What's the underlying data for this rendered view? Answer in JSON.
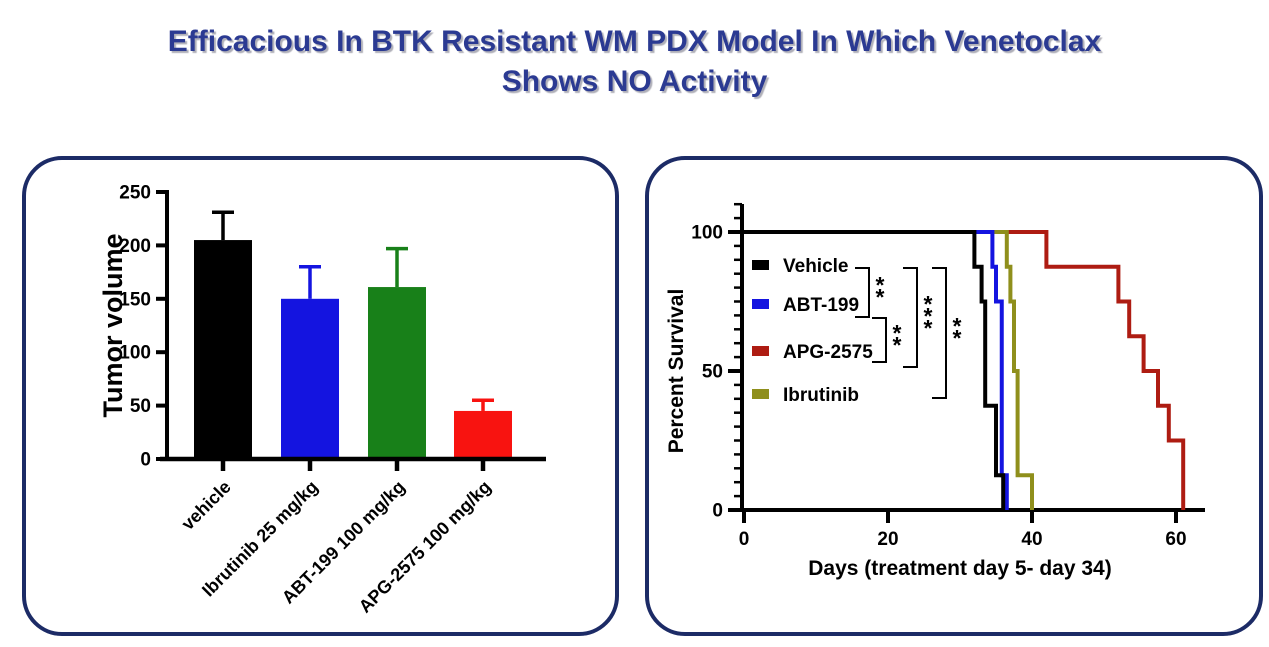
{
  "title": {
    "text": "Efficacious In BTK Resistant WM PDX Model In Which Venetoclax\nShows NO Activity",
    "color": "#2b3a92"
  },
  "panel_border_color": "#1c2b66",
  "chart_data": [
    {
      "id": "tumor-volume-bar",
      "type": "bar",
      "ylabel": "Tumor volume",
      "xlabel": "",
      "ylim": [
        0,
        250
      ],
      "yticks": [
        0,
        50,
        100,
        150,
        200,
        250
      ],
      "grid": false,
      "categories": [
        "vehicle",
        "Ibrutinib 25 mg/kg",
        "ABT-199 100 mg/kg",
        "APG-2575 100 mg/kg"
      ],
      "values": [
        205,
        150,
        161,
        45
      ],
      "error_upper": [
        231,
        180,
        197,
        55
      ],
      "bar_colors": [
        "#000000",
        "#1414e0",
        "#188019",
        "#f81310"
      ]
    },
    {
      "id": "percent-survival-km",
      "type": "line",
      "subtype": "kaplan-meier-step",
      "ylabel": "Percent Survival",
      "xlabel": "Days (treatment day 5- day 34)",
      "xlim": [
        0,
        65
      ],
      "ylim": [
        0,
        110
      ],
      "xticks": [
        0,
        20,
        40,
        60
      ],
      "yticks": [
        0,
        50,
        100
      ],
      "minor_ytick_interval": 5,
      "grid": false,
      "legend_position": "upper-left-inside",
      "legend_order": [
        "Vehicle",
        "ABT-199",
        "APG-2575",
        "Ibrutinib"
      ],
      "series": [
        {
          "name": "Vehicle",
          "color": "#000000",
          "steps": [
            [
              0,
              100
            ],
            [
              32,
              100
            ],
            [
              32,
              87.5
            ],
            [
              33,
              87.5
            ],
            [
              33,
              75
            ],
            [
              33.5,
              75
            ],
            [
              33.5,
              37.5
            ],
            [
              35,
              37.5
            ],
            [
              35,
              12.5
            ],
            [
              36,
              12.5
            ],
            [
              36,
              0
            ]
          ]
        },
        {
          "name": "ABT-199",
          "color": "#1414e0",
          "steps": [
            [
              0,
              100
            ],
            [
              34.5,
              100
            ],
            [
              34.5,
              87.5
            ],
            [
              35,
              87.5
            ],
            [
              35,
              75
            ],
            [
              35.8,
              75
            ],
            [
              35.8,
              12.5
            ],
            [
              36.5,
              12.5
            ],
            [
              36.5,
              0
            ]
          ]
        },
        {
          "name": "APG-2575",
          "color": "#ae1c12",
          "steps": [
            [
              0,
              100
            ],
            [
              42,
              100
            ],
            [
              42,
              87.5
            ],
            [
              52,
              87.5
            ],
            [
              52,
              75
            ],
            [
              53.5,
              75
            ],
            [
              53.5,
              62.5
            ],
            [
              55.5,
              62.5
            ],
            [
              55.5,
              50
            ],
            [
              57.5,
              50
            ],
            [
              57.5,
              37.5
            ],
            [
              59,
              37.5
            ],
            [
              59,
              25
            ],
            [
              61,
              25
            ],
            [
              61,
              0
            ]
          ]
        },
        {
          "name": "Ibrutinib",
          "color": "#8f8f1c",
          "steps": [
            [
              0,
              100
            ],
            [
              36.5,
              100
            ],
            [
              36.5,
              87.5
            ],
            [
              37,
              87.5
            ],
            [
              37,
              75
            ],
            [
              37.5,
              75
            ],
            [
              37.5,
              50
            ],
            [
              38,
              50
            ],
            [
              38,
              12.5
            ],
            [
              40,
              12.5
            ],
            [
              40,
              0
            ]
          ]
        }
      ],
      "significance": [
        {
          "compare": [
            "Vehicle",
            "ABT-199"
          ],
          "label": "**"
        },
        {
          "compare": [
            "ABT-199",
            "APG-2575"
          ],
          "label": "**"
        },
        {
          "compare": [
            "Vehicle",
            "APG-2575"
          ],
          "label": "***"
        },
        {
          "compare": [
            "Vehicle",
            "Ibrutinib"
          ],
          "label": "**"
        }
      ]
    }
  ]
}
